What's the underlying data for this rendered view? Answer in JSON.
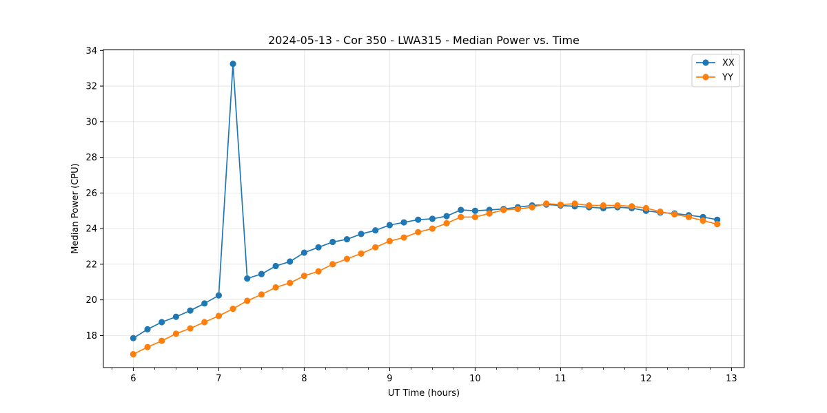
{
  "chart_data": {
    "type": "line",
    "title": "2024-05-13 - Cor 350 - LWA315 - Median Power vs. Time",
    "xlabel": "UT Time (hours)",
    "ylabel": "Median Power (CPU)",
    "xlim": [
      5.65,
      13.15
    ],
    "ylim": [
      16.2,
      34.05
    ],
    "xticks": [
      6,
      7,
      8,
      9,
      10,
      11,
      12,
      13
    ],
    "yticks": [
      18,
      20,
      22,
      24,
      26,
      28,
      30,
      32,
      34
    ],
    "grid": true,
    "legend_position": "top-right",
    "series": [
      {
        "name": "XX",
        "color": "#1f77b4",
        "x": [
          6.0,
          6.1667,
          6.3333,
          6.5,
          6.6667,
          6.8333,
          7.0,
          7.1667,
          7.3333,
          7.5,
          7.6667,
          7.8333,
          8.0,
          8.1667,
          8.3333,
          8.5,
          8.6667,
          8.8333,
          9.0,
          9.1667,
          9.3333,
          9.5,
          9.6667,
          9.8333,
          10.0,
          10.1667,
          10.3333,
          10.5,
          10.6667,
          10.8333,
          11.0,
          11.1667,
          11.3333,
          11.5,
          11.6667,
          11.8333,
          12.0,
          12.1667,
          12.3333,
          12.5,
          12.6667,
          12.8333
        ],
        "values": [
          17.85,
          18.35,
          18.75,
          19.05,
          19.4,
          19.8,
          20.25,
          33.25,
          21.2,
          21.45,
          21.9,
          22.15,
          22.65,
          22.95,
          23.25,
          23.4,
          23.7,
          23.9,
          24.2,
          24.35,
          24.5,
          24.55,
          24.7,
          25.05,
          25.0,
          25.05,
          25.1,
          25.2,
          25.3,
          25.35,
          25.3,
          25.25,
          25.2,
          25.15,
          25.2,
          25.15,
          25.0,
          24.9,
          24.85,
          24.75,
          24.65,
          24.5
        ]
      },
      {
        "name": "YY",
        "color": "#ff7f0e",
        "x": [
          6.0,
          6.1667,
          6.3333,
          6.5,
          6.6667,
          6.8333,
          7.0,
          7.1667,
          7.3333,
          7.5,
          7.6667,
          7.8333,
          8.0,
          8.1667,
          8.3333,
          8.5,
          8.6667,
          8.8333,
          9.0,
          9.1667,
          9.3333,
          9.5,
          9.6667,
          9.8333,
          10.0,
          10.1667,
          10.3333,
          10.5,
          10.6667,
          10.8333,
          11.0,
          11.1667,
          11.3333,
          11.5,
          11.6667,
          11.8333,
          12.0,
          12.1667,
          12.3333,
          12.5,
          12.6667,
          12.8333
        ],
        "values": [
          16.95,
          17.35,
          17.7,
          18.1,
          18.4,
          18.75,
          19.1,
          19.5,
          19.95,
          20.3,
          20.7,
          20.95,
          21.35,
          21.6,
          22.0,
          22.3,
          22.6,
          22.95,
          23.3,
          23.5,
          23.8,
          24.0,
          24.3,
          24.65,
          24.65,
          24.85,
          25.05,
          25.1,
          25.2,
          25.4,
          25.35,
          25.4,
          25.3,
          25.3,
          25.3,
          25.25,
          25.15,
          24.95,
          24.8,
          24.65,
          24.45,
          24.25
        ]
      }
    ]
  }
}
